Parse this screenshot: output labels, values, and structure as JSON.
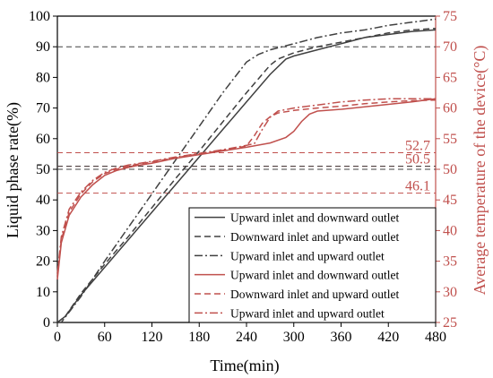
{
  "chart_data": {
    "type": "line",
    "title": "",
    "xlabel": "Time(min)",
    "ylabel_left": "Liquid phase rate(%)",
    "ylabel_right": "Average temperature of the device(°C)",
    "xlim": [
      0,
      480
    ],
    "ylim_left": [
      0,
      100
    ],
    "ylim_right": [
      25,
      75
    ],
    "xticks": [
      0,
      60,
      120,
      180,
      240,
      300,
      360,
      420,
      480
    ],
    "yticks_left": [
      0,
      10,
      20,
      30,
      40,
      50,
      60,
      70,
      80,
      90,
      100
    ],
    "yticks_right": [
      25,
      30,
      35,
      40,
      45,
      50,
      55,
      60,
      65,
      70,
      75
    ],
    "grid": false,
    "legend_position": "lower-right",
    "colors": {
      "black": "#404040",
      "red": "#c0504d",
      "right_axis": "#c0504d"
    },
    "reference_lines": [
      {
        "axis": "left",
        "value": 90,
        "color": "#404040",
        "style": "dash"
      },
      {
        "axis": "right",
        "value": 52.7,
        "color": "#c0504d",
        "style": "dash",
        "label": "52.7"
      },
      {
        "axis": "right",
        "value": 50.5,
        "color": "#c0504d",
        "style": "dash",
        "label": "50.5"
      },
      {
        "axis": "right",
        "value": 46.1,
        "color": "#c0504d",
        "style": "dash",
        "label": "46.1"
      },
      {
        "axis": "left",
        "value": 50,
        "color": "#404040",
        "style": "dash"
      },
      {
        "axis": "left",
        "value": 51,
        "color": "#404040",
        "style": "dash"
      }
    ],
    "series": [
      {
        "name": "Upward inlet and downward outlet",
        "axis": "left",
        "color": "#404040",
        "style": "solid",
        "x": [
          0,
          10,
          30,
          60,
          90,
          120,
          150,
          180,
          210,
          240,
          270,
          290,
          300,
          330,
          360,
          390,
          420,
          450,
          480
        ],
        "y": [
          0,
          2,
          9,
          18,
          27,
          36,
          45,
          54,
          63,
          72,
          81,
          86,
          87,
          89,
          91,
          93,
          94,
          95,
          95.5
        ]
      },
      {
        "name": "Downward inlet and upward outlet",
        "axis": "left",
        "color": "#404040",
        "style": "dash",
        "x": [
          0,
          10,
          30,
          60,
          90,
          120,
          150,
          180,
          210,
          240,
          270,
          280,
          300,
          330,
          360,
          390,
          420,
          450,
          480
        ],
        "y": [
          0,
          2,
          9.5,
          19,
          28,
          37.5,
          47,
          56,
          65.5,
          75,
          84,
          86,
          88,
          90,
          91.5,
          93,
          94.5,
          95.5,
          96
        ]
      },
      {
        "name": "Upward inlet and upward outlet",
        "axis": "left",
        "color": "#404040",
        "style": "dashdot",
        "x": [
          0,
          5,
          30,
          60,
          90,
          120,
          150,
          180,
          210,
          240,
          255,
          270,
          300,
          330,
          360,
          390,
          420,
          450,
          480
        ],
        "y": [
          0,
          0,
          8.5,
          20,
          31,
          42,
          53,
          64,
          75,
          85,
          87.5,
          89,
          91,
          93,
          94.5,
          95.5,
          97,
          98,
          99
        ]
      },
      {
        "name": "Upward inlet and downward outlet",
        "axis": "right",
        "color": "#c0504d",
        "style": "solid",
        "x": [
          0,
          5,
          15,
          30,
          45,
          60,
          75,
          90,
          105,
          120,
          150,
          180,
          210,
          240,
          270,
          290,
          300,
          310,
          320,
          330,
          360,
          390,
          420,
          450,
          480
        ],
        "y": [
          32,
          38,
          42.5,
          45.5,
          47.5,
          49,
          49.8,
          50.3,
          50.7,
          51,
          51.8,
          52.4,
          53,
          53.6,
          54.3,
          55.2,
          56.2,
          57.8,
          59,
          59.5,
          59.8,
          60.2,
          60.6,
          61,
          61.5
        ]
      },
      {
        "name": "Downward inlet and upward outlet",
        "axis": "right",
        "color": "#c0504d",
        "style": "dash",
        "x": [
          0,
          5,
          15,
          30,
          45,
          60,
          75,
          90,
          105,
          120,
          150,
          180,
          210,
          240,
          250,
          260,
          270,
          280,
          300,
          330,
          360,
          390,
          420,
          450,
          480
        ],
        "y": [
          32.5,
          38.5,
          43,
          46,
          48,
          49.3,
          50,
          50.5,
          50.9,
          51.2,
          51.9,
          52.5,
          53.1,
          53.8,
          55.5,
          57.5,
          58.6,
          59.2,
          59.6,
          60,
          60.3,
          60.7,
          61,
          61.2,
          61.3
        ]
      },
      {
        "name": "Upward inlet and upward outlet",
        "axis": "right",
        "color": "#c0504d",
        "style": "dashdot",
        "x": [
          0,
          5,
          15,
          30,
          45,
          60,
          75,
          90,
          105,
          120,
          150,
          180,
          210,
          240,
          250,
          260,
          270,
          280,
          300,
          330,
          360,
          390,
          420,
          450,
          480
        ],
        "y": [
          33,
          39,
          43.5,
          46.3,
          48.2,
          49.5,
          50.2,
          50.7,
          51,
          51.3,
          52,
          52.6,
          53.2,
          53.9,
          54.2,
          56.5,
          58.5,
          59.5,
          60,
          60.5,
          61,
          61.3,
          61.5,
          61.5,
          61.5
        ]
      }
    ],
    "legend": [
      "Upward inlet and downward outlet",
      "Downward inlet and upward outlet",
      "Upward inlet and upward outlet",
      "Upward inlet and downward outlet",
      "Downward inlet and upward outlet",
      "Upward inlet and upward outlet"
    ]
  }
}
